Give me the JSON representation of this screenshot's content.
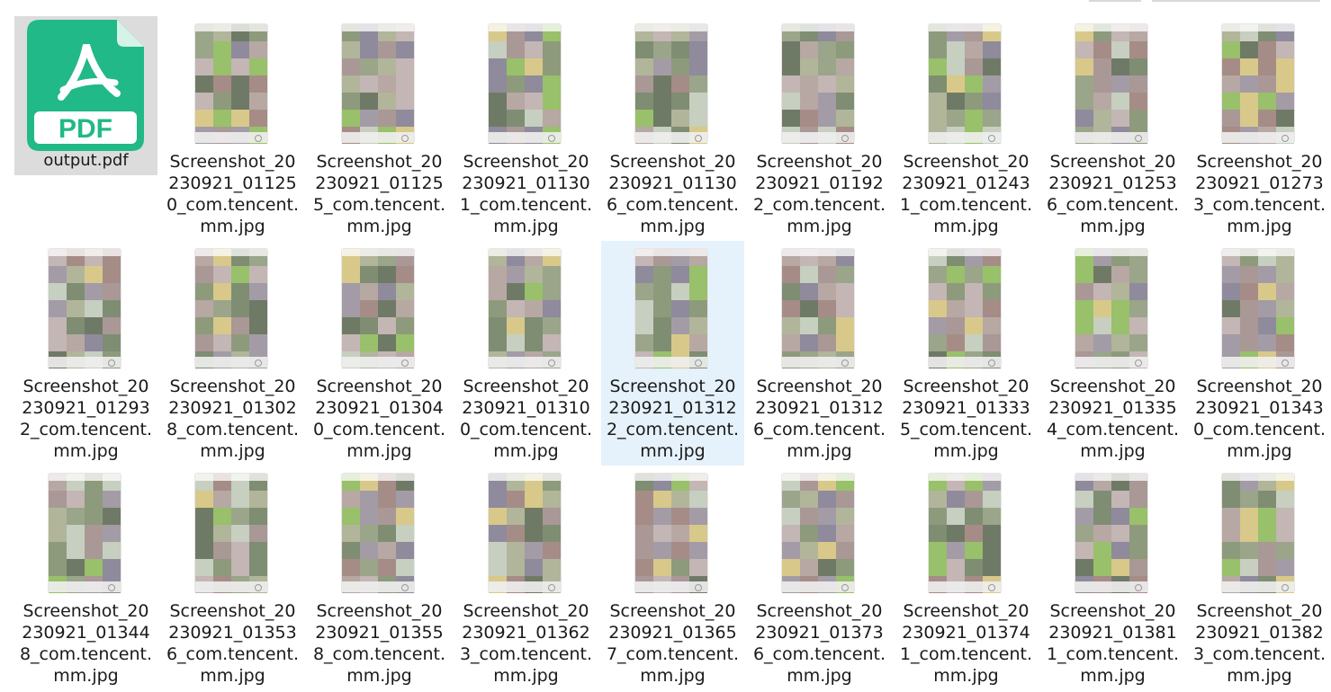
{
  "window": {
    "top_separator": true
  },
  "files": [
    {
      "name": "output.pdf",
      "type": "pdf",
      "selected": false,
      "icon": "pdf-file-icon",
      "badge": "PDF"
    },
    {
      "name": "Screenshot_20230921_011250_com.tencent.mm.jpg",
      "type": "jpg",
      "selected": false
    },
    {
      "name": "Screenshot_20230921_011255_com.tencent.mm.jpg",
      "type": "jpg",
      "selected": false
    },
    {
      "name": "Screenshot_20230921_011301_com.tencent.mm.jpg",
      "type": "jpg",
      "selected": false
    },
    {
      "name": "Screenshot_20230921_011306_com.tencent.mm.jpg",
      "type": "jpg",
      "selected": false
    },
    {
      "name": "Screenshot_20230921_011922_com.tencent.mm.jpg",
      "type": "jpg",
      "selected": false
    },
    {
      "name": "Screenshot_20230921_012431_com.tencent.mm.jpg",
      "type": "jpg",
      "selected": false
    },
    {
      "name": "Screenshot_20230921_012536_com.tencent.mm.jpg",
      "type": "jpg",
      "selected": false
    },
    {
      "name": "Screenshot_20230921_012733_com.tencent.mm.jpg",
      "type": "jpg",
      "selected": false
    },
    {
      "name": "Screenshot_20230921_012932_com.tencent.mm.jpg",
      "type": "jpg",
      "selected": false
    },
    {
      "name": "Screenshot_20230921_013028_com.tencent.mm.jpg",
      "type": "jpg",
      "selected": false
    },
    {
      "name": "Screenshot_20230921_013040_com.tencent.mm.jpg",
      "type": "jpg",
      "selected": false
    },
    {
      "name": "Screenshot_20230921_013100_com.tencent.mm.jpg",
      "type": "jpg",
      "selected": false
    },
    {
      "name": "Screenshot_20230921_013122_com.tencent.mm.jpg",
      "type": "jpg",
      "selected": true
    },
    {
      "name": "Screenshot_20230921_013126_com.tencent.mm.jpg",
      "type": "jpg",
      "selected": false
    },
    {
      "name": "Screenshot_20230921_013335_com.tencent.mm.jpg",
      "type": "jpg",
      "selected": false
    },
    {
      "name": "Screenshot_20230921_013354_com.tencent.mm.jpg",
      "type": "jpg",
      "selected": false
    },
    {
      "name": "Screenshot_20230921_013430_com.tencent.mm.jpg",
      "type": "jpg",
      "selected": false
    },
    {
      "name": "Screenshot_20230921_013448_com.tencent.mm.jpg",
      "type": "jpg",
      "selected": false
    },
    {
      "name": "Screenshot_20230921_013536_com.tencent.mm.jpg",
      "type": "jpg",
      "selected": false
    },
    {
      "name": "Screenshot_20230921_013558_com.tencent.mm.jpg",
      "type": "jpg",
      "selected": false
    },
    {
      "name": "Screenshot_20230921_013623_com.tencent.mm.jpg",
      "type": "jpg",
      "selected": false
    },
    {
      "name": "Screenshot_20230921_013657_com.tencent.mm.jpg",
      "type": "jpg",
      "selected": false
    },
    {
      "name": "Screenshot_20230921_013736_com.tencent.mm.jpg",
      "type": "jpg",
      "selected": false
    },
    {
      "name": "Screenshot_20230921_013741_com.tencent.mm.jpg",
      "type": "jpg",
      "selected": false
    },
    {
      "name": "Screenshot_20230921_013811_com.tencent.mm.jpg",
      "type": "jpg",
      "selected": false
    },
    {
      "name": "Screenshot_20230921_013823_com.tencent.mm.jpg",
      "type": "jpg",
      "selected": false
    }
  ],
  "colors": {
    "pdf_green": "#20b987",
    "selection_bg": "#e5f1fb",
    "pdf_tile_bg": "#dcdcdc",
    "mosaic_palette": [
      "#8e9a7c",
      "#a39ca6",
      "#b7a8a3",
      "#9aa58a",
      "#7f8d73",
      "#c3b6b4",
      "#a99896",
      "#8f8a9c",
      "#b1b59a",
      "#6f7a66",
      "#99c06a",
      "#d8c98a",
      "#a68c86",
      "#c6cfc0"
    ]
  }
}
